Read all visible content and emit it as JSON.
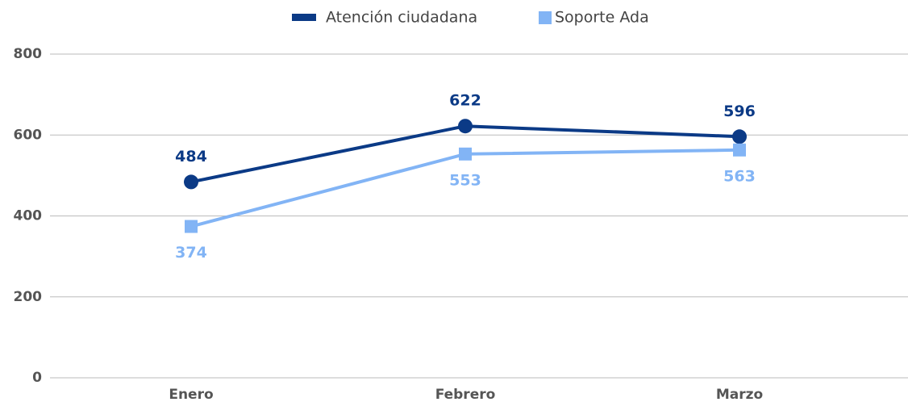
{
  "chart_data": {
    "type": "line",
    "categories": [
      "Enero",
      "Febrero",
      "Marzo"
    ],
    "series": [
      {
        "name": "Atención ciudadana",
        "color": "#0b3a86",
        "values": [
          484,
          622,
          596
        ]
      },
      {
        "name": "Soporte Ada",
        "color": "#82b4f5",
        "values": [
          374,
          553,
          563
        ]
      }
    ],
    "ylim": [
      0,
      800
    ],
    "yticks": [
      0,
      200,
      400,
      600,
      800
    ],
    "grid": true,
    "legend": "top"
  }
}
